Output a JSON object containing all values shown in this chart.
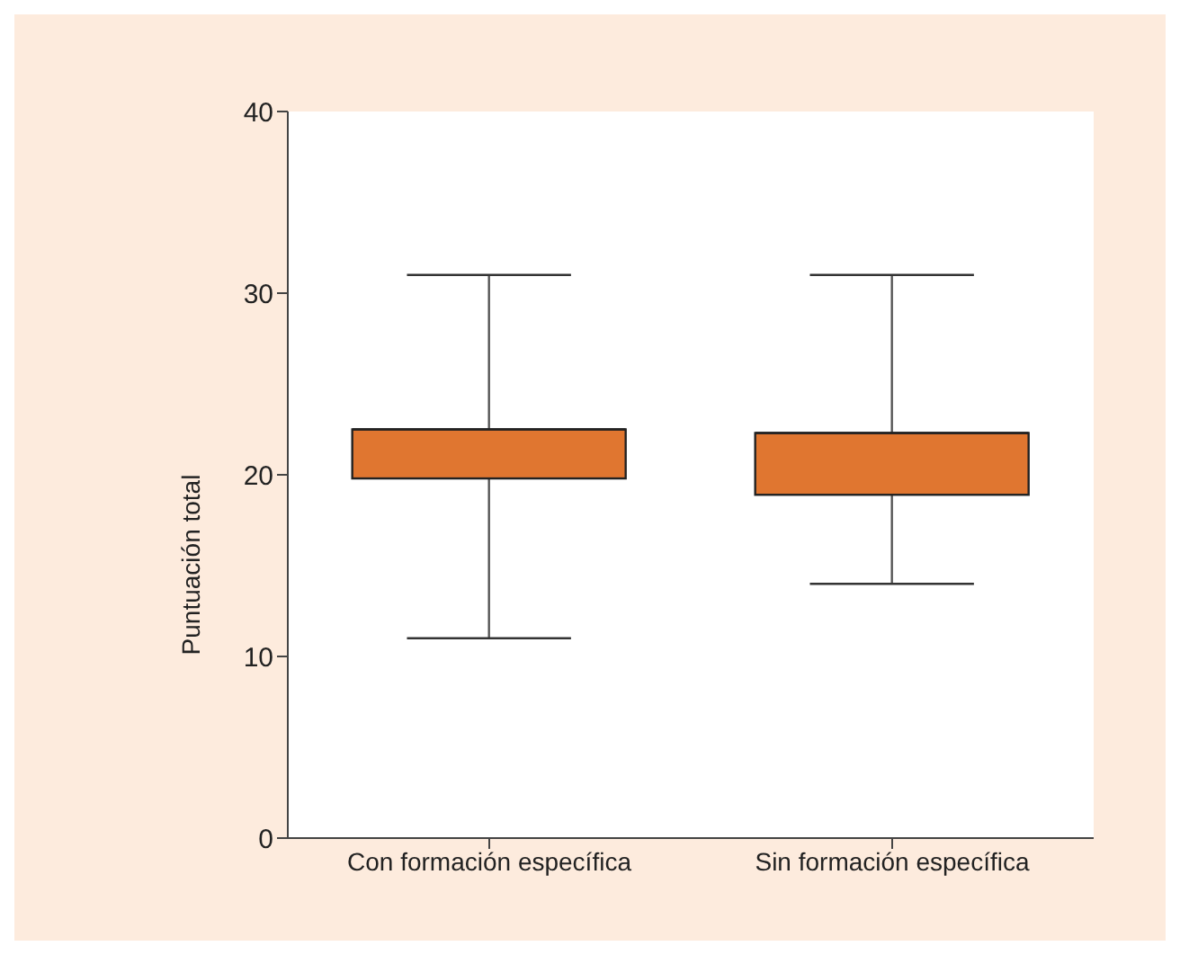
{
  "chart_data": {
    "type": "box",
    "ylabel": "Puntuación total",
    "categories": [
      "Con formación específica",
      "Sin formación específica"
    ],
    "color": "#e07630",
    "boxes": [
      {
        "low": 11,
        "q1": 19.8,
        "median": 22.5,
        "q3": 22.5,
        "high": 31
      },
      {
        "low": 14,
        "q1": 18.9,
        "median": 22.3,
        "q3": 22.3,
        "high": 31
      }
    ],
    "ylim": [
      0,
      40
    ],
    "yticks": [
      0,
      10,
      20,
      30,
      40
    ],
    "grid": false,
    "legend": false
  }
}
